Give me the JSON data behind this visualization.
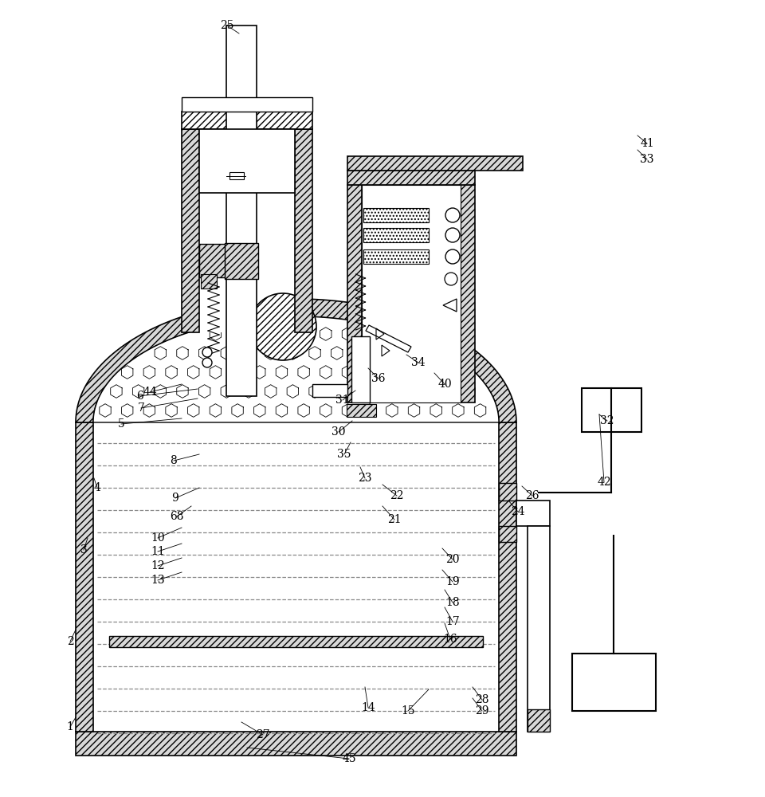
{
  "bg": "#ffffff",
  "lc": "#000000",
  "lw": 1.2,
  "fs": 10,
  "hatch_fc": "#d8d8d8",
  "labels": [
    [
      "1",
      88,
      88
    ],
    [
      "2",
      88,
      195
    ],
    [
      "3",
      105,
      310
    ],
    [
      "4",
      122,
      388
    ],
    [
      "5",
      152,
      468
    ],
    [
      "6",
      175,
      503
    ],
    [
      "7",
      177,
      488
    ],
    [
      "8",
      218,
      422
    ],
    [
      "9",
      220,
      375
    ],
    [
      "10",
      198,
      325
    ],
    [
      "11",
      198,
      308
    ],
    [
      "12",
      198,
      290
    ],
    [
      "13",
      198,
      272
    ],
    [
      "14",
      462,
      112
    ],
    [
      "15",
      512,
      108
    ],
    [
      "16",
      565,
      198
    ],
    [
      "17",
      568,
      220
    ],
    [
      "18",
      568,
      244
    ],
    [
      "19",
      568,
      270
    ],
    [
      "20",
      568,
      298
    ],
    [
      "21",
      495,
      348
    ],
    [
      "22",
      498,
      378
    ],
    [
      "23",
      458,
      400
    ],
    [
      "24",
      650,
      358
    ],
    [
      "25",
      285,
      968
    ],
    [
      "26",
      668,
      378
    ],
    [
      "27",
      330,
      78
    ],
    [
      "28",
      605,
      122
    ],
    [
      "29",
      605,
      108
    ],
    [
      "30",
      425,
      458
    ],
    [
      "31",
      430,
      498
    ],
    [
      "32",
      762,
      472
    ],
    [
      "33",
      812,
      800
    ],
    [
      "34",
      525,
      545
    ],
    [
      "35",
      432,
      430
    ],
    [
      "36",
      475,
      525
    ],
    [
      "40",
      558,
      518
    ],
    [
      "41",
      812,
      820
    ],
    [
      "42",
      758,
      395
    ],
    [
      "44",
      188,
      508
    ],
    [
      "45",
      438,
      48
    ],
    [
      "68",
      222,
      352
    ]
  ]
}
